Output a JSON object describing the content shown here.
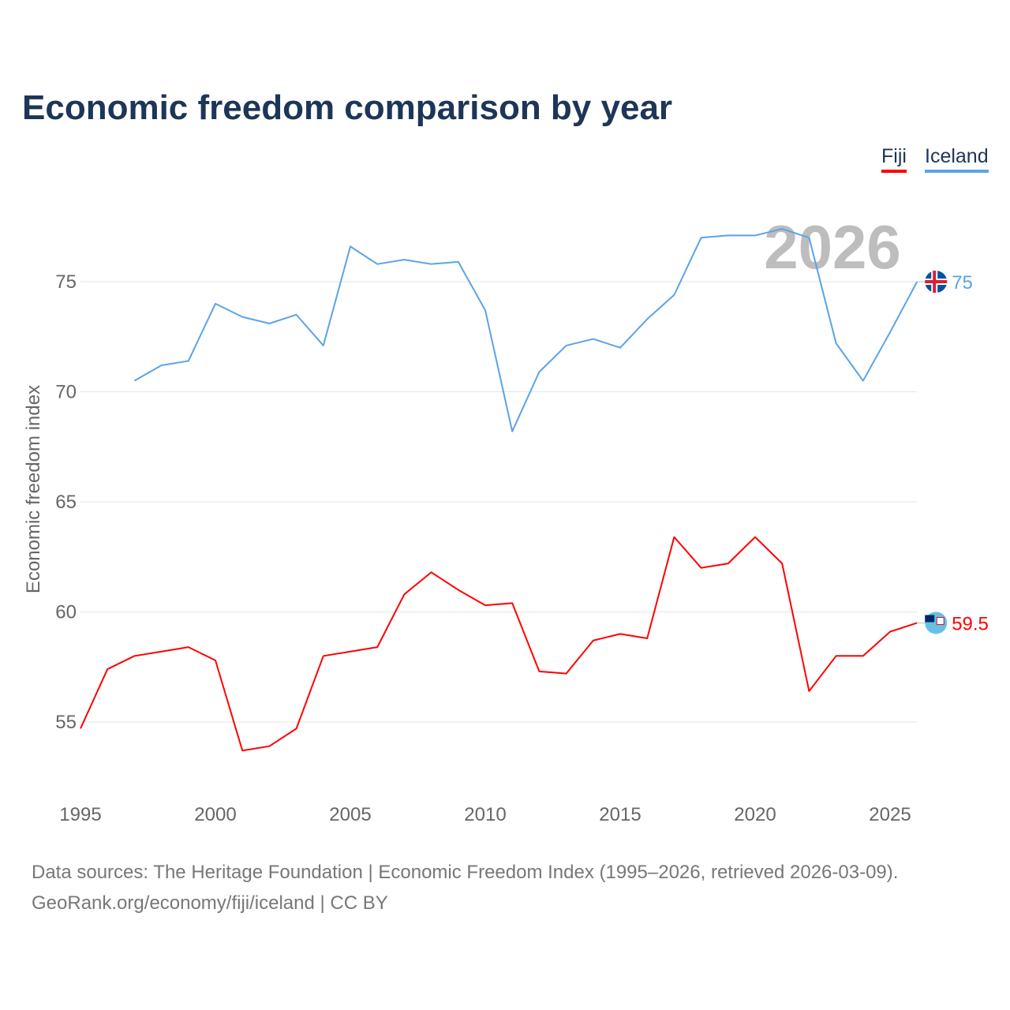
{
  "title": "Economic freedom comparison by year",
  "legend": [
    {
      "label": "Fiji",
      "color": "#ff0000"
    },
    {
      "label": "Iceland",
      "color": "#5aa3e8"
    }
  ],
  "watermark_year": "2026",
  "footer": {
    "line1": "Data sources: The Heritage Foundation | Economic Freedom Index (1995–2026, retrieved 2026-03-09).",
    "line2": "GeoRank.org/economy/fiji/iceland | CC BY"
  },
  "chart_data": {
    "type": "line",
    "title": "Economic freedom comparison by year",
    "xlabel": "",
    "ylabel": "Economic freedom index",
    "xlim": [
      1995,
      2026
    ],
    "ylim": [
      52.5,
      78
    ],
    "x_ticks": [
      "1995",
      "2000",
      "2005",
      "2010",
      "2015",
      "2020",
      "2025"
    ],
    "y_ticks": [
      "55",
      "60",
      "65",
      "70",
      "75"
    ],
    "grid": true,
    "legend_position": "top-right",
    "series": [
      {
        "name": "Fiji",
        "color": "#ff0000",
        "end_label": "59.5",
        "flag": "fiji-flag-icon",
        "x": [
          1995,
          1996,
          1997,
          1998,
          1999,
          2000,
          2001,
          2002,
          2003,
          2004,
          2005,
          2006,
          2007,
          2008,
          2009,
          2010,
          2011,
          2012,
          2013,
          2014,
          2015,
          2016,
          2017,
          2018,
          2019,
          2020,
          2021,
          2022,
          2023,
          2024,
          2025,
          2026
        ],
        "values": [
          54.7,
          57.4,
          58.0,
          58.2,
          58.4,
          57.8,
          53.7,
          53.9,
          54.7,
          58.0,
          58.2,
          58.4,
          60.8,
          61.8,
          61.0,
          60.3,
          60.4,
          57.3,
          57.2,
          58.7,
          59.0,
          58.8,
          63.4,
          62.0,
          62.2,
          63.4,
          62.2,
          56.4,
          58.0,
          58.0,
          59.1,
          59.5
        ]
      },
      {
        "name": "Iceland",
        "color": "#5aa3e8",
        "end_label": "75",
        "flag": "iceland-flag-icon",
        "x": [
          1997,
          1998,
          1999,
          2000,
          2001,
          2002,
          2003,
          2004,
          2005,
          2006,
          2007,
          2008,
          2009,
          2010,
          2011,
          2012,
          2013,
          2014,
          2015,
          2016,
          2017,
          2018,
          2019,
          2020,
          2021,
          2022,
          2023,
          2024,
          2025,
          2026
        ],
        "values": [
          70.5,
          71.2,
          71.4,
          74.0,
          73.4,
          73.1,
          73.5,
          72.1,
          76.6,
          75.8,
          76.0,
          75.8,
          75.9,
          73.7,
          68.2,
          70.9,
          72.1,
          72.4,
          72.0,
          73.3,
          74.4,
          77.0,
          77.1,
          77.1,
          77.4,
          77.0,
          72.2,
          70.5,
          72.7,
          75.0
        ]
      }
    ]
  }
}
